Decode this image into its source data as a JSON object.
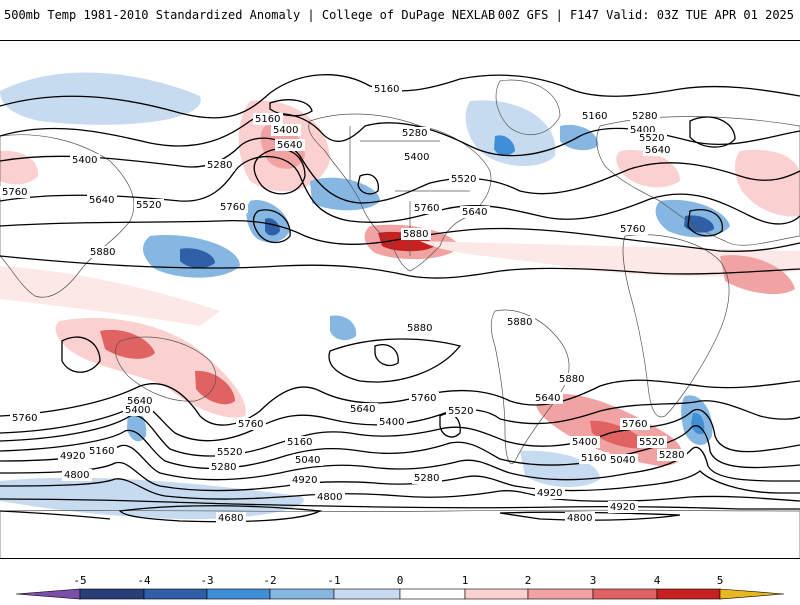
{
  "header": {
    "left_title": "500mb Temp 1981-2010 Standardized Anomaly | College of DuPage NEXLAB",
    "right_title": "00Z GFS | F147 Valid: 03Z TUE APR 01 2025"
  },
  "map": {
    "contour_labels": [
      {
        "id": "c1",
        "text": "5160"
      },
      {
        "id": "c2",
        "text": "5160"
      },
      {
        "id": "c3",
        "text": "5160"
      },
      {
        "id": "c4",
        "text": "5280"
      },
      {
        "id": "c5",
        "text": "5400"
      },
      {
        "id": "c6",
        "text": "5640"
      },
      {
        "id": "c7",
        "text": "5400"
      },
      {
        "id": "c8",
        "text": "5280"
      },
      {
        "id": "c9",
        "text": "5400"
      },
      {
        "id": "c10",
        "text": "5520"
      },
      {
        "id": "c11",
        "text": "5640"
      },
      {
        "id": "c12",
        "text": "5520"
      },
      {
        "id": "c13",
        "text": "5760"
      },
      {
        "id": "c14",
        "text": "5760"
      },
      {
        "id": "c15",
        "text": "5640"
      },
      {
        "id": "c16",
        "text": "5880"
      },
      {
        "id": "c17",
        "text": "5880"
      },
      {
        "id": "c18",
        "text": "5760"
      },
      {
        "id": "c19",
        "text": "5280"
      },
      {
        "id": "c20",
        "text": "5400"
      },
      {
        "id": "c21",
        "text": "5520"
      },
      {
        "id": "c22",
        "text": "5640"
      },
      {
        "id": "c23",
        "text": "5760"
      },
      {
        "id": "c24",
        "text": "5880"
      },
      {
        "id": "c25",
        "text": "5880"
      },
      {
        "id": "c26",
        "text": "5880"
      },
      {
        "id": "c27",
        "text": "5760"
      },
      {
        "id": "c28",
        "text": "5640"
      },
      {
        "id": "c29",
        "text": "5400"
      },
      {
        "id": "c30",
        "text": "5160"
      },
      {
        "id": "c31",
        "text": "4920"
      },
      {
        "id": "c32",
        "text": "4800"
      },
      {
        "id": "c33",
        "text": "5760"
      },
      {
        "id": "c34",
        "text": "5520"
      },
      {
        "id": "c35",
        "text": "5280"
      },
      {
        "id": "c36",
        "text": "5160"
      },
      {
        "id": "c37",
        "text": "5040"
      },
      {
        "id": "c38",
        "text": "4920"
      },
      {
        "id": "c39",
        "text": "4800"
      },
      {
        "id": "c40",
        "text": "4680"
      },
      {
        "id": "c41",
        "text": "5640"
      },
      {
        "id": "c42",
        "text": "5760"
      },
      {
        "id": "c43",
        "text": "5400"
      },
      {
        "id": "c44",
        "text": "5520"
      },
      {
        "id": "c45",
        "text": "5280"
      },
      {
        "id": "c46",
        "text": "5640"
      },
      {
        "id": "c47",
        "text": "5760"
      },
      {
        "id": "c48",
        "text": "5400"
      },
      {
        "id": "c49",
        "text": "5160"
      },
      {
        "id": "c50",
        "text": "5520"
      },
      {
        "id": "c51",
        "text": "5040"
      },
      {
        "id": "c52",
        "text": "5280"
      },
      {
        "id": "c53",
        "text": "4920"
      },
      {
        "id": "c54",
        "text": "4920"
      },
      {
        "id": "c55",
        "text": "4800"
      },
      {
        "id": "c56",
        "text": "5760"
      }
    ]
  },
  "colorbar": {
    "ticks": [
      "-5",
      "-4",
      "-3",
      "-2",
      "-1",
      "0",
      "1",
      "2",
      "3",
      "4",
      "5"
    ],
    "colors": [
      "#7b4fa8",
      "#2a3f7a",
      "#2f5fa6",
      "#3f8fd6",
      "#86b7e3",
      "#c6dbef",
      "#ffffff",
      "#ffffff",
      "#fbd0d0",
      "#f1a3a3",
      "#e06262",
      "#c62020",
      "#8e0f0f",
      "#e8b820"
    ]
  }
}
